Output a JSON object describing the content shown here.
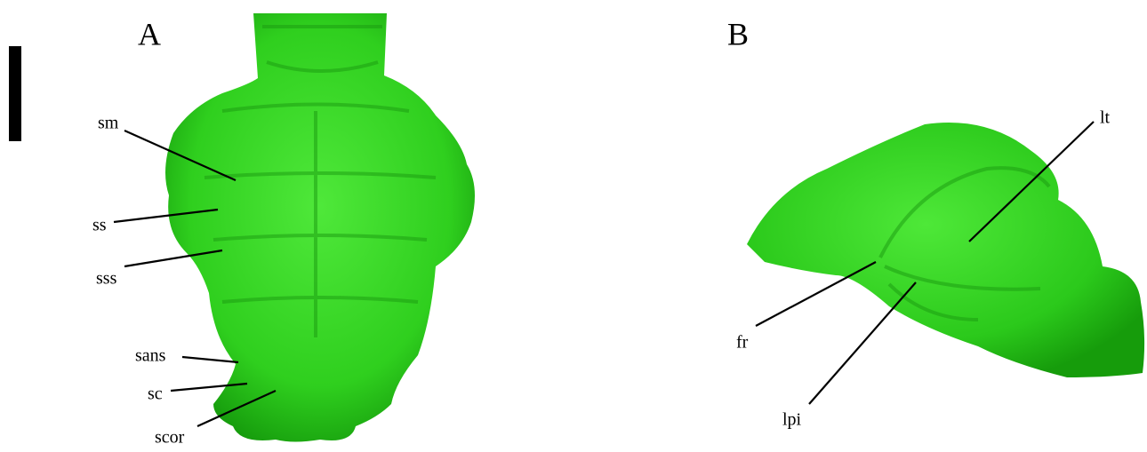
{
  "panels": [
    {
      "label": "A",
      "annotations": [
        "sm",
        "ss",
        "sss",
        "sans",
        "sc",
        "scor"
      ]
    },
    {
      "label": "B",
      "annotations": [
        "lt",
        "fr",
        "lpi"
      ]
    }
  ]
}
